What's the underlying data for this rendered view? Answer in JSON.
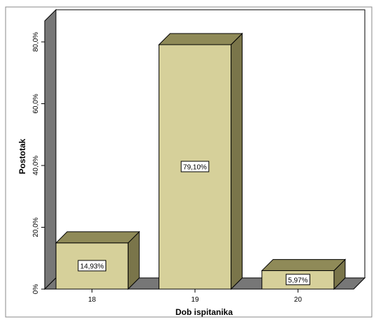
{
  "chart_data": {
    "type": "bar",
    "title": "",
    "xlabel": "Dob ispitanika",
    "ylabel": "Postotak",
    "categories": [
      "18",
      "19",
      "20"
    ],
    "values": [
      14.93,
      79.1,
      5.97
    ],
    "data_labels": [
      "14,93%",
      "79,10%",
      "5,97%"
    ],
    "ylim": [
      0,
      80
    ],
    "yticks": [
      0,
      20,
      40,
      60,
      80
    ],
    "ytick_labels": [
      "0%",
      "20,0%",
      "40,0%",
      "60,0%",
      "80,0%"
    ],
    "grid": false,
    "legend": "none",
    "style": "3d"
  },
  "colors": {
    "bar_front": "#d6d09a",
    "bar_top": "#8f8a58",
    "bar_side": "#7a754a",
    "floor": "#777777",
    "left_wall": "#777777",
    "frame": "#888888"
  }
}
